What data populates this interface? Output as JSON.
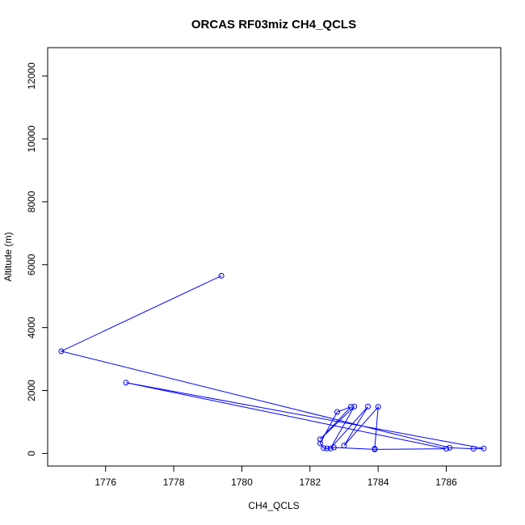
{
  "chart_data": {
    "type": "line",
    "title": "ORCAS RF03miz CH4_QCLS",
    "xlabel": "CH4_QCLS",
    "ylabel": "Altitude (m)",
    "xlim": [
      1774.3,
      1787.6
    ],
    "ylim": [
      -400,
      12900
    ],
    "xticks": [
      1776,
      1778,
      1780,
      1782,
      1784,
      1786
    ],
    "yticks": [
      0,
      2000,
      4000,
      6000,
      8000,
      10000,
      12000
    ],
    "grid": false,
    "legend": "none",
    "series": [
      {
        "color": "#0000ff",
        "marker": "open-circle",
        "x": [
          1779.4,
          1774.7,
          1786.1,
          1786.8,
          1787.1,
          1776.6,
          1786.0,
          1783.9,
          1782.7,
          1782.5,
          1782.4,
          1782.3,
          1782.8,
          1783.2,
          1782.3,
          1783.3,
          1782.6,
          1783.7,
          1783.0,
          1784.0,
          1783.9
        ],
        "y": [
          5650,
          3250,
          180,
          150,
          160,
          2250,
          150,
          130,
          190,
          160,
          170,
          320,
          1320,
          1480,
          450,
          1490,
          160,
          1490,
          250,
          1480,
          150
        ]
      }
    ]
  }
}
